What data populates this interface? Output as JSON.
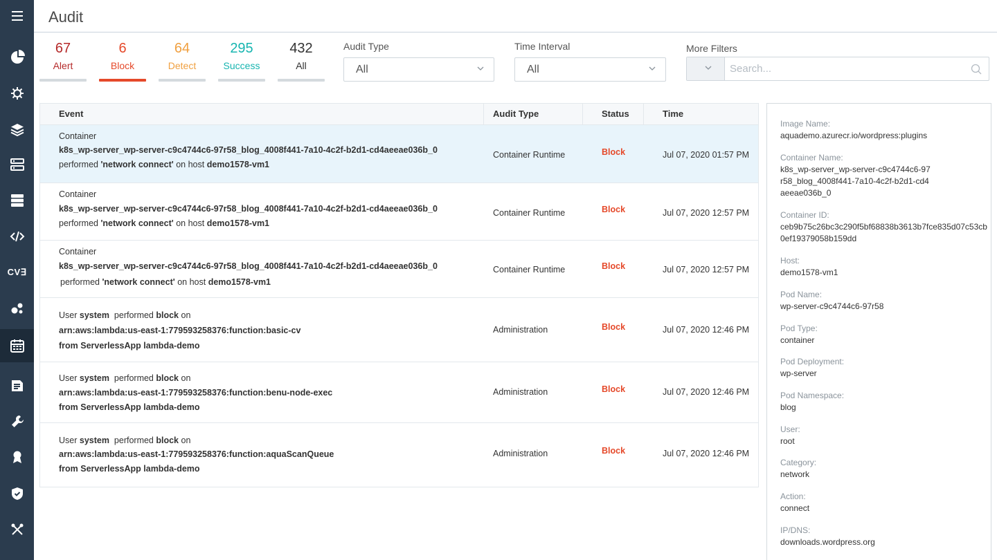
{
  "page": {
    "title": "Audit"
  },
  "sidebar": {
    "items": [
      {
        "name": "menu-icon"
      },
      {
        "name": "dashboard-icon"
      },
      {
        "name": "bug-icon"
      },
      {
        "name": "layers-icon"
      },
      {
        "name": "workloads-icon"
      },
      {
        "name": "servers-icon"
      },
      {
        "name": "code-icon"
      },
      {
        "name": "cve-icon",
        "text": "CV∃"
      },
      {
        "name": "network-icon"
      },
      {
        "name": "calendar-icon"
      },
      {
        "name": "report-icon"
      },
      {
        "name": "wrench-icon"
      },
      {
        "name": "badge-icon"
      },
      {
        "name": "shield-icon"
      },
      {
        "name": "tools-icon"
      }
    ],
    "active_index": 9
  },
  "stats": [
    {
      "count": "67",
      "label": "Alert",
      "color": "#b52a2a"
    },
    {
      "count": "6",
      "label": "Block",
      "color": "#e5492a"
    },
    {
      "count": "64",
      "label": "Detect",
      "color": "#f0a040"
    },
    {
      "count": "295",
      "label": "Success",
      "color": "#16b5b0"
    },
    {
      "count": "432",
      "label": "All",
      "color": "#333333"
    }
  ],
  "selected_stat_index": 1,
  "filters": {
    "audit_type": {
      "label": "Audit Type",
      "value": "All"
    },
    "time_interval": {
      "label": "Time Interval",
      "value": "All"
    },
    "more_filters": {
      "label": "More Filters",
      "placeholder": "Search..."
    }
  },
  "table": {
    "columns": [
      "Event",
      "Audit Type",
      "Status",
      "Time"
    ],
    "rows": [
      {
        "line1": "Container",
        "line2": "k8s_wp-server_wp-server-c9c4744c6-97r58_blog_4008f441-7a10-4c2f-b2d1-cd4aeeae036b_0",
        "line3_pre": "performed ",
        "line3_action": "'network connect'",
        "line3_mid": " on host ",
        "line3_host": "demo1578-vm1",
        "audit_type": "Container Runtime",
        "status": "Block",
        "time": "Jul 07, 2020 01:57 PM"
      },
      {
        "line1": "Container",
        "line2": "k8s_wp-server_wp-server-c9c4744c6-97r58_blog_4008f441-7a10-4c2f-b2d1-cd4aeeae036b_0",
        "line3_pre": "performed ",
        "line3_action": "'network connect'",
        "line3_mid": " on host ",
        "line3_host": "demo1578-vm1",
        "audit_type": "Container Runtime",
        "status": "Block",
        "time": "Jul 07, 2020 12:57 PM"
      },
      {
        "line1": "Container",
        "line2": "k8s_wp-server_wp-server-c9c4744c6-97r58_blog_4008f441-7a10-4c2f-b2d1-cd4aeeae036b_0",
        "line3_pre": "performed ",
        "line3_action": "'network connect'",
        "line3_mid": " on host ",
        "line3_host": "demo1578-vm1",
        "audit_type": "Container Runtime",
        "status": "Block",
        "time": "Jul 07, 2020 12:57 PM"
      },
      {
        "user_pre": "User ",
        "user": "system",
        "user_mid": "  performed ",
        "user_action": "block",
        "user_post": " on",
        "line2": "arn:aws:lambda:us-east-1:779593258376:function:basic-cv",
        "line3": "from ServerlessApp lambda-demo",
        "audit_type": "Administration",
        "status": "Block",
        "time": "Jul 07, 2020 12:46 PM"
      },
      {
        "user_pre": "User ",
        "user": "system",
        "user_mid": "  performed ",
        "user_action": "block",
        "user_post": " on",
        "line2": "arn:aws:lambda:us-east-1:779593258376:function:benu-node-exec",
        "line3": "from ServerlessApp lambda-demo",
        "audit_type": "Administration",
        "status": "Block",
        "time": "Jul 07, 2020 12:46 PM"
      },
      {
        "user_pre": "User ",
        "user": "system",
        "user_mid": "  performed ",
        "user_action": "block",
        "user_post": " on",
        "line2": "arn:aws:lambda:us-east-1:779593258376:function:aquaScanQueue",
        "line3": "from ServerlessApp lambda-demo",
        "audit_type": "Administration",
        "status": "Block",
        "time": "Jul 07, 2020 12:46 PM"
      }
    ],
    "selected_row_index": 0
  },
  "detail": [
    {
      "label": "Image Name:",
      "value": "aquademo.azurecr.io/wordpress:plugins"
    },
    {
      "label": "Container Name:",
      "value": "k8s_wp-server_wp-server-c9c4744c6-97r58_blog_4008f441-7a10-4c2f-b2d1-cd4aeeae036b_0"
    },
    {
      "label": "Container ID:",
      "value": "ceb9b75c26bc3c290f5bf68838b3613b7fce835d07c53cb0ef19379058b159dd"
    },
    {
      "label": "Host:",
      "value": "demo1578-vm1"
    },
    {
      "label": "Pod Name:",
      "value": "wp-server-c9c4744c6-97r58"
    },
    {
      "label": "Pod Type:",
      "value": "container"
    },
    {
      "label": "Pod Deployment:",
      "value": "wp-server"
    },
    {
      "label": "Pod Namespace:",
      "value": "blog"
    },
    {
      "label": "User:",
      "value": "root"
    },
    {
      "label": "Category:",
      "value": "network"
    },
    {
      "label": "Action:",
      "value": "connect"
    },
    {
      "label": "IP/DNS:",
      "value": "downloads.wordpress.org"
    }
  ]
}
